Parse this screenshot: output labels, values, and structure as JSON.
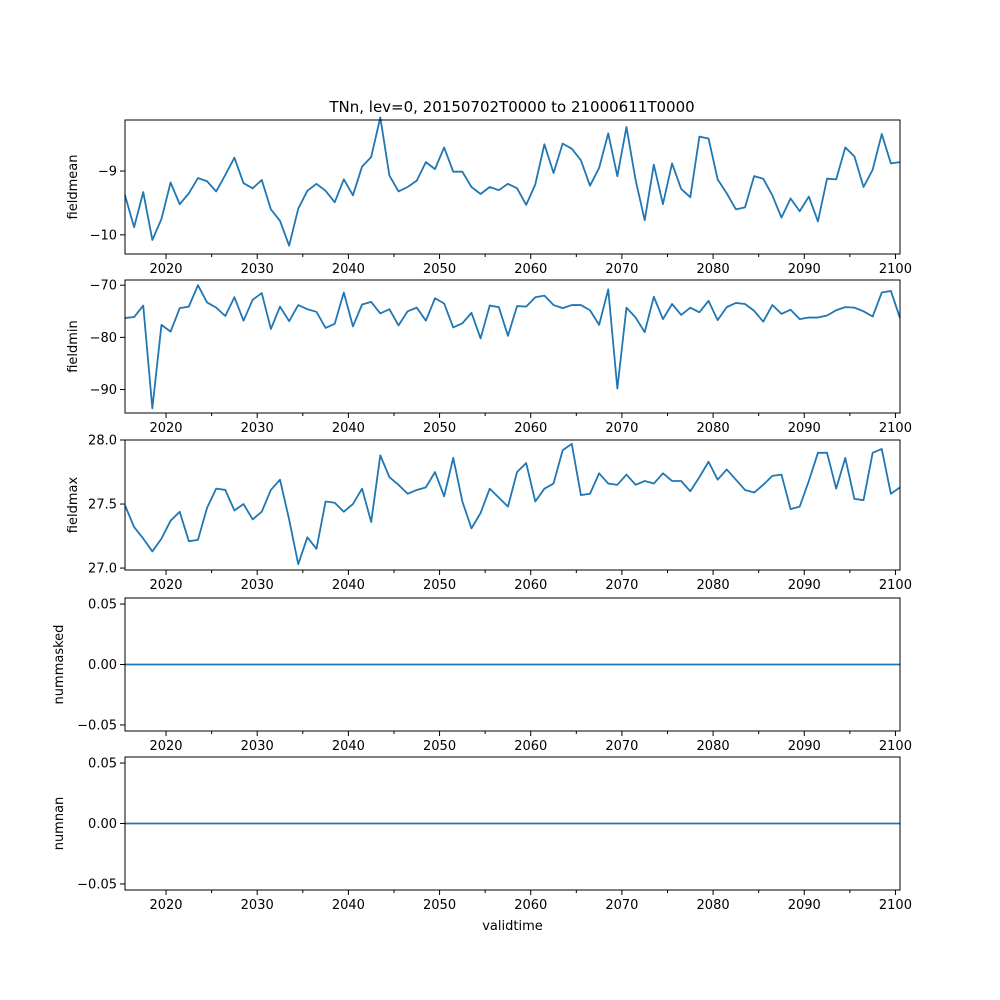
{
  "title": "TNn, lev=0, 20150702T0000 to 21000611T0000",
  "line_color": "#1f77b4",
  "chart_data": [
    {
      "type": "line",
      "ylabel": "fieldmean",
      "xlabel": "",
      "xlim": [
        2015.5,
        2100.5
      ],
      "ylim": [
        -10.3,
        -8.2
      ],
      "yticks": [
        -10,
        -9
      ],
      "ytick_labels": [
        "−10",
        "−9"
      ],
      "xticks": [
        2020,
        2030,
        2040,
        2050,
        2060,
        2070,
        2080,
        2090,
        2100
      ],
      "xtick_labels": [
        "2020",
        "2030",
        "2040",
        "2050",
        "2060",
        "2070",
        "2080",
        "2090",
        "2100"
      ],
      "x_start": 2015.5,
      "x_step": 1,
      "values": [
        -9.38,
        -9.88,
        -9.33,
        -10.08,
        -9.75,
        -9.18,
        -9.52,
        -9.35,
        -9.11,
        -9.16,
        -9.32,
        -9.06,
        -8.79,
        -9.19,
        -9.27,
        -9.14,
        -9.6,
        -9.78,
        -10.17,
        -9.59,
        -9.31,
        -9.2,
        -9.31,
        -9.49,
        -9.13,
        -9.38,
        -8.93,
        -8.78,
        -8.16,
        -9.07,
        -9.32,
        -9.25,
        -9.15,
        -8.86,
        -8.97,
        -8.63,
        -9.01,
        -9.01,
        -9.25,
        -9.36,
        -9.25,
        -9.3,
        -9.2,
        -9.27,
        -9.53,
        -9.21,
        -8.58,
        -9.03,
        -8.57,
        -8.65,
        -8.83,
        -9.23,
        -8.95,
        -8.41,
        -9.08,
        -8.31,
        -9.14,
        -9.77,
        -8.9,
        -9.52,
        -8.88,
        -9.28,
        -9.41,
        -8.46,
        -8.49,
        -9.13,
        -9.35,
        -9.6,
        -9.57,
        -9.08,
        -9.12,
        -9.38,
        -9.73,
        -9.43,
        -9.63,
        -9.4,
        -9.79,
        -9.12,
        -9.13,
        -8.63,
        -8.77,
        -9.25,
        -8.98,
        -8.42,
        -8.88,
        -8.86
      ]
    },
    {
      "type": "line",
      "ylabel": "fieldmin",
      "xlabel": "",
      "xlim": [
        2015.5,
        2100.5
      ],
      "ylim": [
        -94.5,
        -69.0
      ],
      "yticks": [
        -90,
        -80,
        -70
      ],
      "ytick_labels": [
        "−90",
        "−80",
        "−70"
      ],
      "xticks": [
        2020,
        2030,
        2040,
        2050,
        2060,
        2070,
        2080,
        2090,
        2100
      ],
      "xtick_labels": [
        "2020",
        "2030",
        "2040",
        "2050",
        "2060",
        "2070",
        "2080",
        "2090",
        "2100"
      ],
      "x_start": 2015.5,
      "x_step": 1,
      "values": [
        -76.3,
        -76.1,
        -73.9,
        -93.6,
        -77.6,
        -78.9,
        -74.4,
        -74.1,
        -70.0,
        -73.3,
        -74.3,
        -75.9,
        -72.3,
        -76.8,
        -72.8,
        -71.5,
        -78.4,
        -74.1,
        -76.9,
        -73.8,
        -74.6,
        -75.1,
        -78.2,
        -77.4,
        -71.4,
        -77.9,
        -73.7,
        -73.2,
        -75.4,
        -74.6,
        -77.7,
        -75.0,
        -74.3,
        -76.8,
        -72.5,
        -73.5,
        -78.1,
        -77.3,
        -75.3,
        -80.2,
        -73.9,
        -74.2,
        -79.7,
        -74.0,
        -74.1,
        -72.3,
        -72.0,
        -73.8,
        -74.4,
        -73.8,
        -73.8,
        -74.8,
        -77.6,
        -70.8,
        -89.8,
        -74.3,
        -76.2,
        -79.0,
        -72.2,
        -76.5,
        -73.6,
        -75.7,
        -74.3,
        -75.2,
        -73.0,
        -76.7,
        -74.2,
        -73.4,
        -73.6,
        -74.9,
        -77.0,
        -73.8,
        -75.5,
        -74.7,
        -76.5,
        -76.2,
        -76.2,
        -75.8,
        -74.8,
        -74.2,
        -74.3,
        -75.0,
        -76.0,
        -71.4,
        -71.1,
        -76.3
      ]
    },
    {
      "type": "line",
      "ylabel": "fieldmax",
      "xlabel": "",
      "xlim": [
        2015.5,
        2100.5
      ],
      "ylim": [
        26.985,
        28.0
      ],
      "yticks": [
        27.0,
        27.5,
        28.0
      ],
      "ytick_labels": [
        "27.0",
        "27.5",
        "28.0"
      ],
      "xticks": [
        2020,
        2030,
        2040,
        2050,
        2060,
        2070,
        2080,
        2090,
        2100
      ],
      "xtick_labels": [
        "2020",
        "2030",
        "2040",
        "2050",
        "2060",
        "2070",
        "2080",
        "2090",
        "2100"
      ],
      "x_start": 2015.5,
      "x_step": 1,
      "values": [
        27.49,
        27.32,
        27.23,
        27.13,
        27.23,
        27.37,
        27.44,
        27.21,
        27.22,
        27.47,
        27.62,
        27.61,
        27.45,
        27.5,
        27.38,
        27.44,
        27.61,
        27.69,
        27.38,
        27.03,
        27.24,
        27.15,
        27.52,
        27.51,
        27.44,
        27.5,
        27.62,
        27.36,
        27.88,
        27.71,
        27.65,
        27.58,
        27.61,
        27.63,
        27.75,
        27.56,
        27.86,
        27.52,
        27.31,
        27.43,
        27.62,
        27.55,
        27.48,
        27.75,
        27.82,
        27.52,
        27.62,
        27.66,
        27.92,
        27.97,
        27.57,
        27.58,
        27.74,
        27.66,
        27.65,
        27.73,
        27.65,
        27.68,
        27.66,
        27.74,
        27.68,
        27.68,
        27.6,
        27.71,
        27.83,
        27.69,
        27.77,
        27.69,
        27.61,
        27.59,
        27.65,
        27.72,
        27.73,
        27.46,
        27.48,
        27.68,
        27.9,
        27.9,
        27.62,
        27.86,
        27.54,
        27.53,
        27.9,
        27.93,
        27.58,
        27.63
      ]
    },
    {
      "type": "line",
      "ylabel": "nummasked",
      "xlabel": "",
      "xlim": [
        2015.5,
        2100.5
      ],
      "ylim": [
        -0.055,
        0.055
      ],
      "yticks": [
        -0.05,
        0.0,
        0.05
      ],
      "ytick_labels": [
        "−0.05",
        "0.00",
        "0.05"
      ],
      "xticks": [
        2020,
        2030,
        2040,
        2050,
        2060,
        2070,
        2080,
        2090,
        2100
      ],
      "xtick_labels": [
        "2020",
        "2030",
        "2040",
        "2050",
        "2060",
        "2070",
        "2080",
        "2090",
        "2100"
      ],
      "x": [
        2015.5,
        2100.5
      ],
      "values": [
        0,
        0
      ]
    },
    {
      "type": "line",
      "ylabel": "numnan",
      "xlabel": "validtime",
      "xlim": [
        2015.5,
        2100.5
      ],
      "ylim": [
        -0.055,
        0.055
      ],
      "yticks": [
        -0.05,
        0.0,
        0.05
      ],
      "ytick_labels": [
        "−0.05",
        "0.00",
        "0.05"
      ],
      "xticks": [
        2020,
        2030,
        2040,
        2050,
        2060,
        2070,
        2080,
        2090,
        2100
      ],
      "xtick_labels": [
        "2020",
        "2030",
        "2040",
        "2050",
        "2060",
        "2070",
        "2080",
        "2090",
        "2100"
      ],
      "x": [
        2015.5,
        2100.5
      ],
      "values": [
        0,
        0
      ]
    }
  ]
}
